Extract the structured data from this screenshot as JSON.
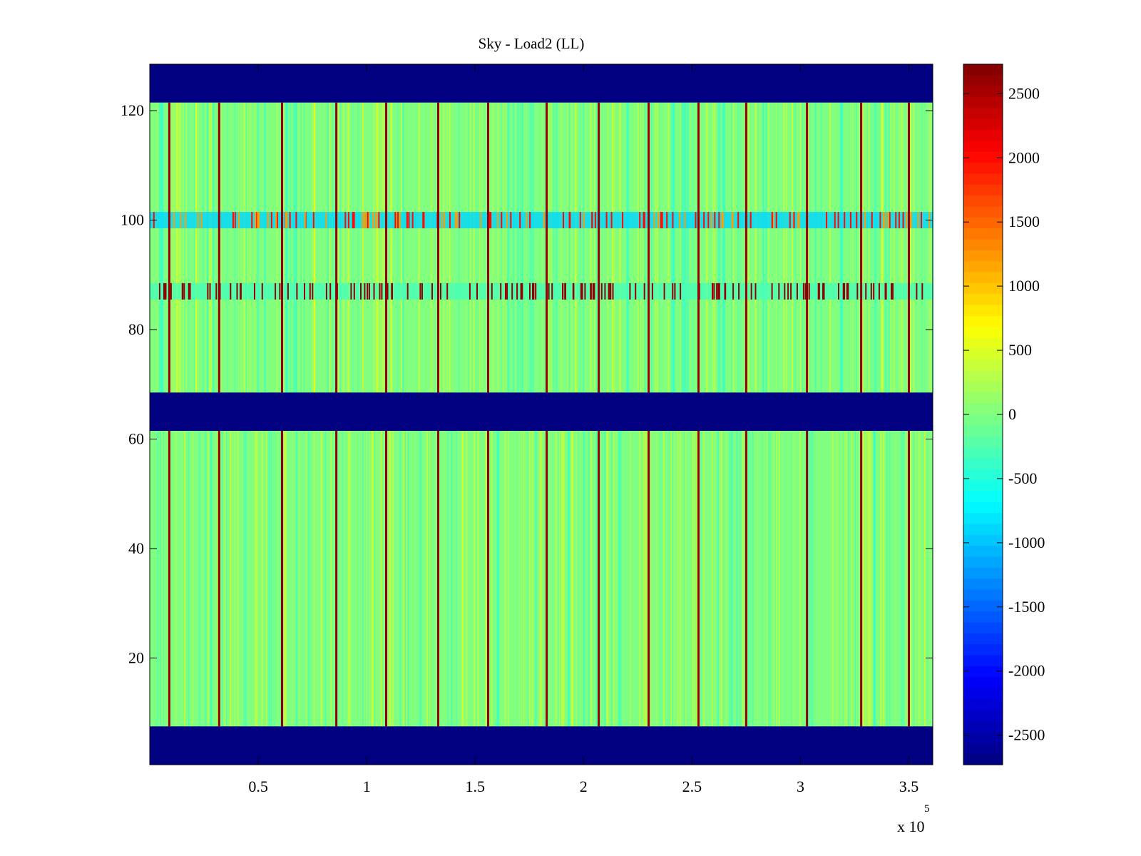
{
  "chart_data": {
    "type": "heatmap",
    "title": "Sky - Load2 (LL)",
    "xlabel": "",
    "ylabel": "",
    "x_multiplier_label": {
      "base": "x 10",
      "exponent": "5"
    },
    "xlim": [
      0,
      3.61
    ],
    "ylim": [
      0.5,
      128.5
    ],
    "x_ticks": [
      {
        "value": 0.5,
        "label": "0.5"
      },
      {
        "value": 1,
        "label": "1"
      },
      {
        "value": 1.5,
        "label": "1.5"
      },
      {
        "value": 2,
        "label": "2"
      },
      {
        "value": 2.5,
        "label": "2.5"
      },
      {
        "value": 3,
        "label": "3"
      },
      {
        "value": 3.5,
        "label": "3.5"
      }
    ],
    "y_ticks": [
      {
        "value": 20,
        "label": "20"
      },
      {
        "value": 40,
        "label": "40"
      },
      {
        "value": 60,
        "label": "60"
      },
      {
        "value": 80,
        "label": "80"
      },
      {
        "value": 100,
        "label": "100"
      },
      {
        "value": 120,
        "label": "120"
      }
    ],
    "colormap": "jet",
    "clim": [
      -2730,
      2730
    ],
    "colorbar_ticks": [
      {
        "value": 2500,
        "label": "2500"
      },
      {
        "value": 2000,
        "label": "2000"
      },
      {
        "value": 1500,
        "label": "1500"
      },
      {
        "value": 1000,
        "label": "1000"
      },
      {
        "value": 500,
        "label": "500"
      },
      {
        "value": 0,
        "label": "0"
      },
      {
        "value": -500,
        "label": "-500"
      },
      {
        "value": -1000,
        "label": "-1000"
      },
      {
        "value": -1500,
        "label": "-1500"
      },
      {
        "value": -2000,
        "label": "-2000"
      },
      {
        "value": -2500,
        "label": "-2500"
      }
    ],
    "masked_rows": [
      [
        1,
        7
      ],
      [
        62,
        68
      ],
      [
        122,
        128
      ]
    ],
    "masked_value": -2730,
    "background_level": 0,
    "spike_columns_x": [
      0.09,
      0.32,
      0.61,
      0.86,
      1.09,
      1.33,
      1.56,
      1.83,
      2.07,
      2.3,
      2.53,
      2.75,
      3.03,
      3.28,
      3.5
    ],
    "spike_level": 2600,
    "noisy_rows": [
      {
        "rows": [
          99,
          101
        ],
        "description_level": "alternating -1200 / +2000"
      },
      {
        "rows": [
          86,
          88
        ],
        "description_level": "sparse +2600 spikes"
      }
    ],
    "grid": false,
    "colors": {
      "axes": "#000000",
      "background": "#ffffff",
      "masked": "#00008F"
    }
  }
}
